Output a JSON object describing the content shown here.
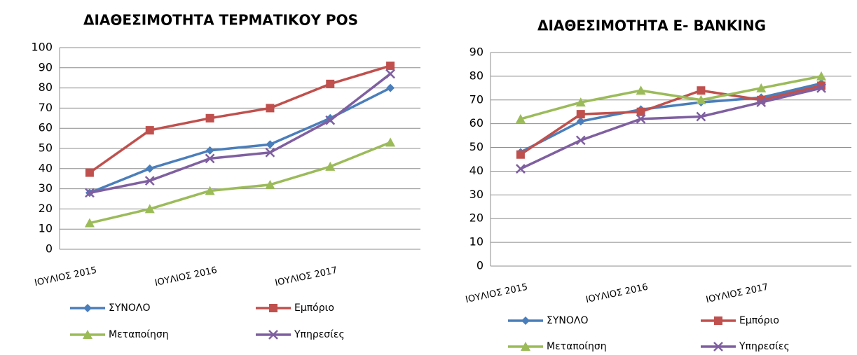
{
  "chart_data": [
    {
      "type": "line",
      "title": "ΔΙΑΘΕΣΙΜΟΤΗΤΑ ΤΕΡΜΑΤΙΚΟΥ POS",
      "categories": [
        "ΙΟΥΛΙΟΣ 2015",
        null,
        "ΙΟΥΛΙΟΣ 2016",
        null,
        "ΙΟΥΛΙΟΣ 2017",
        null
      ],
      "series": [
        {
          "name": "ΣΥΝΟΛΟ",
          "color": "#4a7ebb",
          "values": [
            28,
            40,
            49,
            52,
            65,
            80
          ]
        },
        {
          "name": "Εμπόριο",
          "color": "#c0504d",
          "values": [
            38,
            59,
            65,
            70,
            82,
            91
          ]
        },
        {
          "name": "Μεταποίηση",
          "color": "#9bbb59",
          "values": [
            13,
            20,
            29,
            32,
            41,
            53
          ]
        },
        {
          "name": "Υπηρεσίες",
          "color": "#7f5fa0",
          "values": [
            28,
            34,
            45,
            48,
            64,
            87
          ]
        }
      ],
      "ylim": [
        0,
        100
      ],
      "yticks": [
        0,
        10,
        20,
        30,
        40,
        50,
        60,
        70,
        80,
        90,
        100
      ],
      "grid": true
    },
    {
      "type": "line",
      "title": "ΔΙΑΘΕΣΙΜΟΤΗΤΑ E- BANKING",
      "categories": [
        "ΙΟΥΛΙΟΣ 2015",
        null,
        "ΙΟΥΛΙΟΣ 2016",
        null,
        "ΙΟΥΛΙΟΣ 2017",
        null
      ],
      "series": [
        {
          "name": "ΣΥΝΟΛΟ",
          "color": "#4a7ebb",
          "values": [
            48,
            61,
            66,
            69,
            71,
            77
          ]
        },
        {
          "name": "Εμπόριο",
          "color": "#c0504d",
          "values": [
            47,
            64,
            65,
            74,
            70,
            76
          ]
        },
        {
          "name": "Μεταποίηση",
          "color": "#9bbb59",
          "values": [
            62,
            69,
            74,
            70,
            75,
            80
          ]
        },
        {
          "name": "Υπηρεσίες",
          "color": "#7f5fa0",
          "values": [
            41,
            53,
            62,
            63,
            69,
            75
          ]
        }
      ],
      "ylim": [
        0,
        90
      ],
      "yticks": [
        0,
        10,
        20,
        30,
        40,
        50,
        60,
        70,
        80,
        90
      ],
      "grid": true
    }
  ]
}
